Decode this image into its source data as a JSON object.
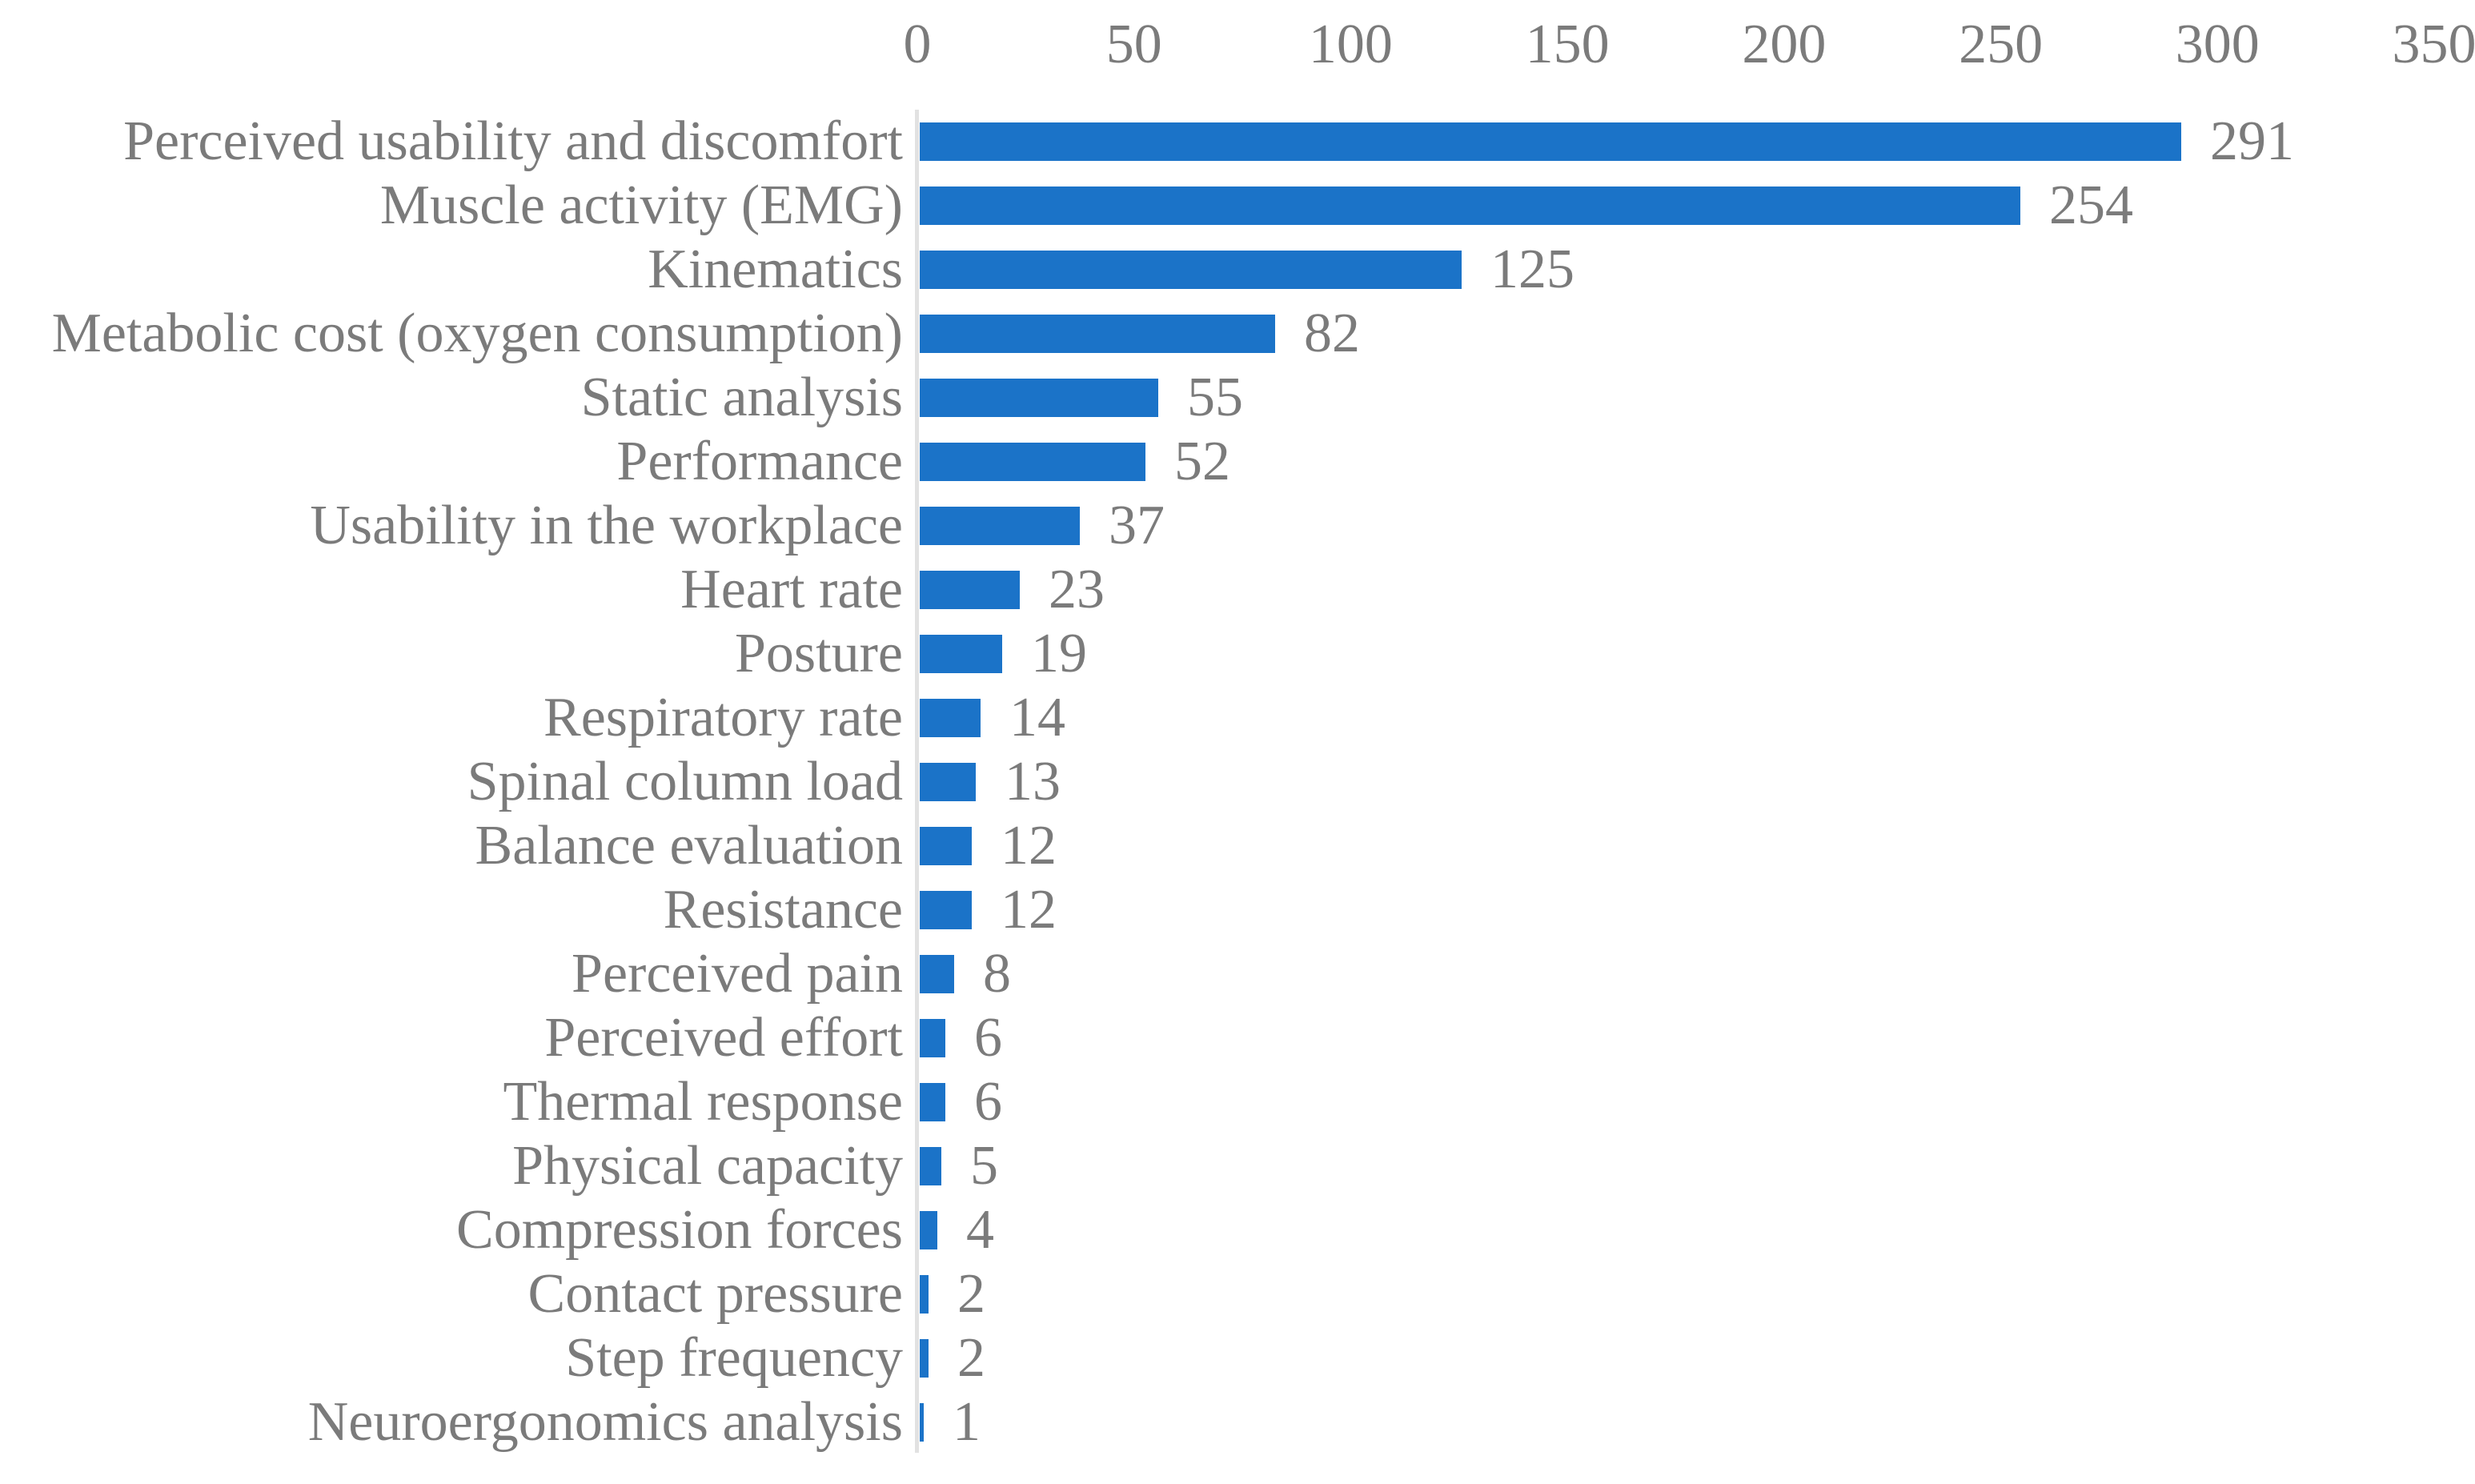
{
  "chart_data": {
    "type": "bar",
    "orientation": "horizontal",
    "title": "",
    "xlabel": "",
    "ylabel": "",
    "axis_position": "top",
    "grid": false,
    "legend": "none",
    "data_labels": "outside-end",
    "xlim": [
      0,
      350
    ],
    "x_ticks": [
      "0",
      "50",
      "100",
      "150",
      "200",
      "250",
      "300",
      "350"
    ],
    "categories": [
      "Perceived usability and discomfort",
      "Muscle activity (EMG)",
      "Kinematics",
      "Metabolic cost (oxygen consumption)",
      "Static analysis",
      "Performance",
      "Usability in the workplace",
      "Heart rate",
      "Posture",
      "Respiratory rate",
      "Spinal column load",
      "Balance evaluation",
      "Resistance",
      "Perceived pain",
      "Perceived effort",
      "Thermal response",
      "Physical capacity",
      "Compression forces",
      "Contact pressure",
      "Step frequency",
      "Neuroergonomics analysis"
    ],
    "values": [
      291,
      254,
      125,
      82,
      55,
      52,
      37,
      23,
      19,
      14,
      13,
      12,
      12,
      8,
      6,
      6,
      5,
      4,
      2,
      2,
      1
    ],
    "bar_color": "#1B73C8",
    "text_color": "#7B7B7B",
    "axis_line_color": "#E2E2E2"
  }
}
